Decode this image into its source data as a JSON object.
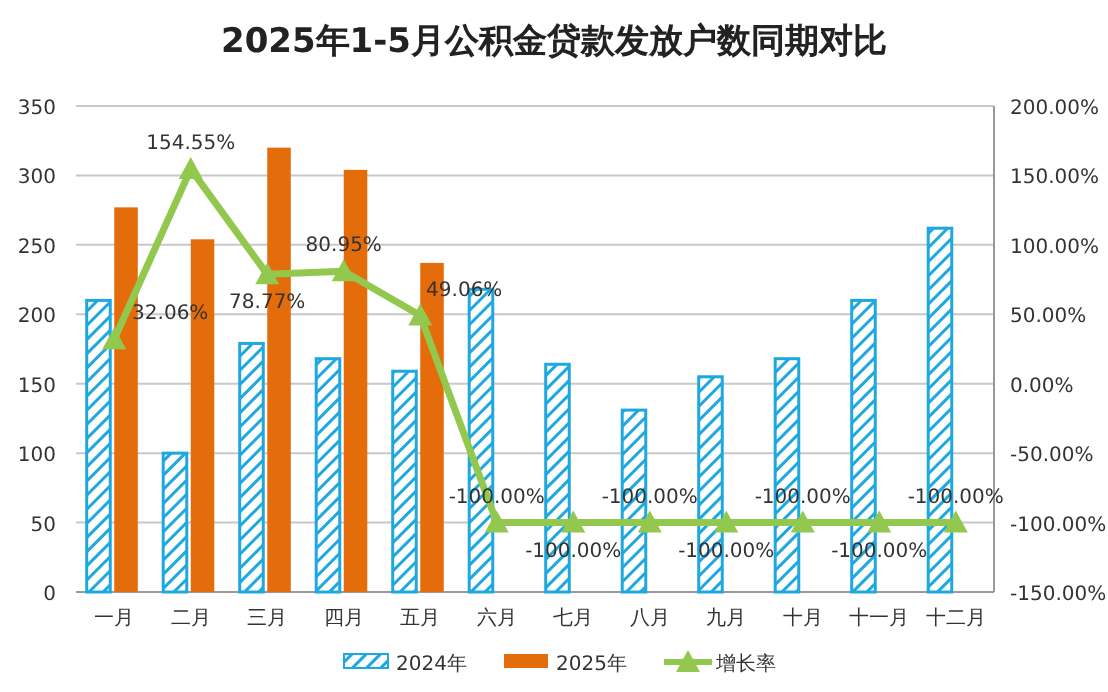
{
  "chart_data": {
    "type": "bar",
    "title": "2025年1-5月公积金贷款发放户数同期对比",
    "categories": [
      "一月",
      "二月",
      "三月",
      "四月",
      "五月",
      "六月",
      "七月",
      "八月",
      "九月",
      "十月",
      "十一月",
      "十二月"
    ],
    "series": [
      {
        "name": "2024年",
        "color": "#1fa8e0",
        "values": [
          210,
          100,
          179,
          168,
          159,
          218,
          164,
          131,
          155,
          168,
          210,
          262
        ]
      },
      {
        "name": "2025年",
        "color": "#e46c0a",
        "values": [
          277,
          254,
          320,
          304,
          237,
          0,
          0,
          0,
          0,
          0,
          0,
          0
        ]
      },
      {
        "name": "增长率",
        "type": "line",
        "axis": "y2",
        "color": "#92c84e",
        "values": [
          32.06,
          154.55,
          78.77,
          80.95,
          49.06,
          -100,
          -100,
          -100,
          -100,
          -100,
          -100,
          -100
        ],
        "value_labels": [
          "32.06%",
          "154.55%",
          "78.77%",
          "80.95%",
          "49.06%",
          "-100.00%",
          "-100.00%",
          "-100.00%",
          "-100.00%",
          "-100.00%",
          "-100.00%",
          "-100.00%"
        ]
      }
    ],
    "ylim": [
      0,
      350
    ],
    "yticks": [
      0,
      50,
      100,
      150,
      200,
      250,
      300,
      350
    ],
    "y2lim": [
      -150,
      200
    ],
    "y2ticks": [
      {
        "value": -150,
        "label": "-150.00%"
      },
      {
        "value": -100,
        "label": "-100.00%"
      },
      {
        "value": -50,
        "label": "-50.00%"
      },
      {
        "value": 0,
        "label": "0.00%"
      },
      {
        "value": 50,
        "label": "50.00%"
      },
      {
        "value": 100,
        "label": "100.00%"
      },
      {
        "value": 150,
        "label": "150.00%"
      },
      {
        "value": 200,
        "label": "200.00%"
      }
    ],
    "grid": "y",
    "legend": "bottom",
    "marker": "triangle"
  }
}
